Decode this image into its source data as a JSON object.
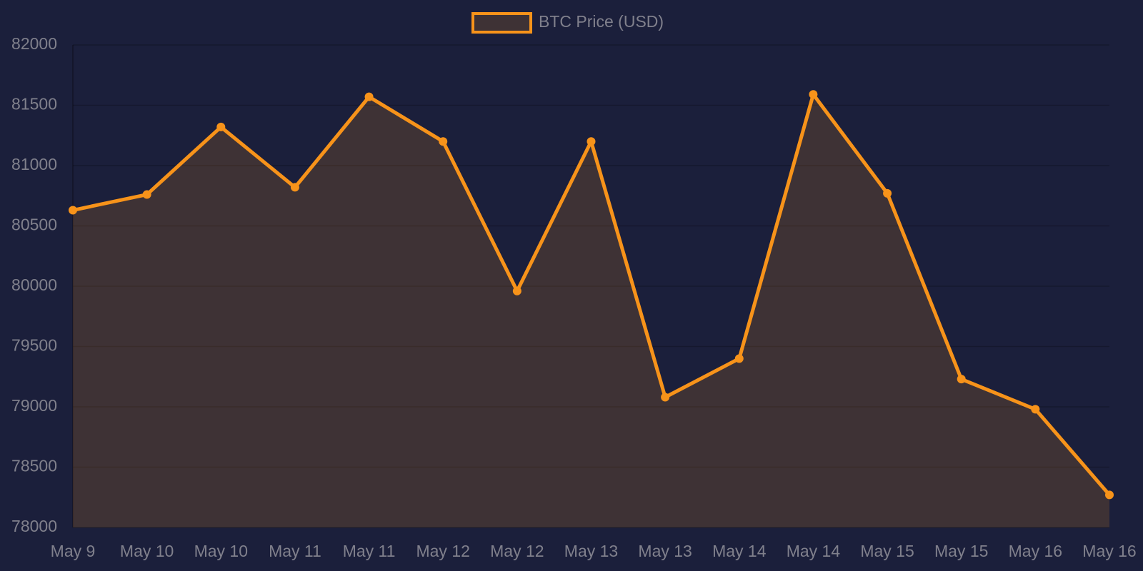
{
  "chart_data": {
    "type": "line",
    "categories": [
      "May 9",
      "May 10",
      "May 10",
      "May 11",
      "May 11",
      "May 12",
      "May 12",
      "May 13",
      "May 13",
      "May 14",
      "May 14",
      "May 15",
      "May 15",
      "May 16",
      "May 16"
    ],
    "series": [
      {
        "name": "BTC Price (USD)",
        "color": "#f7931a",
        "fill_color": "rgba(247,147,26,0.16)",
        "values": [
          80630,
          80760,
          81320,
          80820,
          81570,
          81200,
          79960,
          81200,
          79080,
          79400,
          81590,
          80770,
          79230,
          78980,
          78270
        ]
      }
    ],
    "ylim": [
      78000,
      82000
    ],
    "yticks": [
      78000,
      78500,
      79000,
      79500,
      80000,
      80500,
      81000,
      81500,
      82000
    ],
    "grid": true,
    "fill": true,
    "legend": "top"
  }
}
